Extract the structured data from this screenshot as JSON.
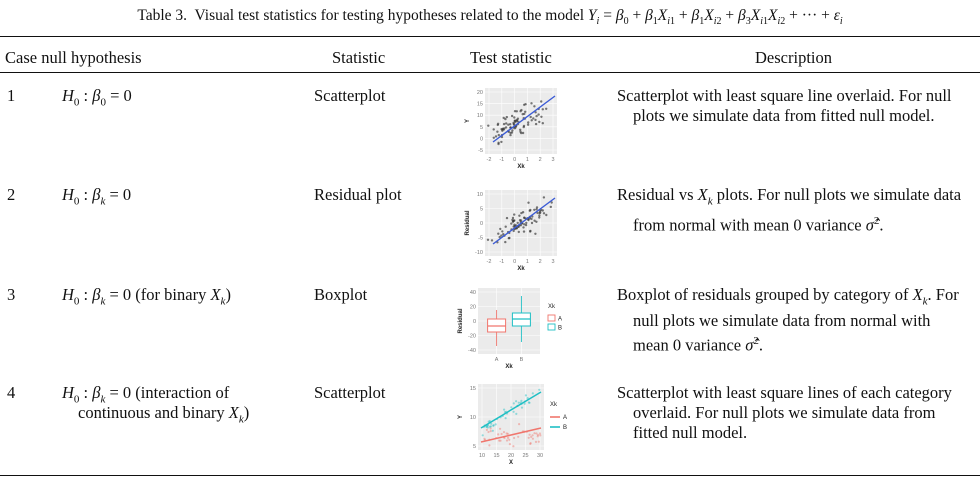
{
  "table": {
    "caption": "Table 3.  Visual test statistics for testing hypotheses related to the model Yi = β0 + β1Xi1 + β1Xi2 + β3Xi1Xi2 + ··· + εi",
    "headers": [
      "Case null hypothesis",
      "Statistic",
      "Test statistic",
      "Description"
    ],
    "rows": [
      {
        "case": "1",
        "hypothesis": [
          "H0 : β0 = 0"
        ],
        "statistic": "Scatterplot",
        "description": [
          "Scatterplot with least square line overlaid. For null",
          "plots we simulate data from fitted null model."
        ],
        "thumb": {
          "ylabel": "Y",
          "xlabel": "Xk",
          "yticks": [
            "20",
            "15",
            "10",
            "5",
            "0",
            "-5"
          ],
          "xticks": [
            "-2",
            "-1",
            "0",
            "1",
            "2",
            "3"
          ]
        }
      },
      {
        "case": "2",
        "hypothesis": [
          "H0 : βk = 0"
        ],
        "statistic": "Residual plot",
        "description": [
          "Residual vs Xk plots. For null plots we simulate data",
          "from normal with mean 0 variance σ̂²."
        ],
        "thumb": {
          "ylabel": "Residual",
          "xlabel": "Xk",
          "yticks": [
            "10",
            "5",
            "0",
            "-5",
            "-10"
          ],
          "xticks": [
            "-2",
            "-1",
            "0",
            "1",
            "2",
            "3"
          ]
        }
      },
      {
        "case": "3",
        "hypothesis": [
          "H0 : βk = 0 (for binary Xk)"
        ],
        "statistic": "Boxplot",
        "description": [
          "Boxplot of residuals grouped by category of Xk. For",
          "null plots we simulate data from normal with",
          "mean 0 variance σ̂²."
        ],
        "thumb": {
          "ylabel": "Residual",
          "xlabel": "Xk",
          "yticks": [
            "40",
            "20",
            "0",
            "-20",
            "-40"
          ],
          "xticks": [
            "A",
            "B"
          ],
          "legend_title": "Xk",
          "legend": [
            "A",
            "B"
          ]
        }
      },
      {
        "case": "4",
        "hypothesis": [
          "H0 : βk = 0 (interaction of",
          "continuous and binary Xk)"
        ],
        "statistic": "Scatterplot",
        "description": [
          "Scatterplot with least square lines of each category",
          "overlaid. For null plots we simulate data from",
          "fitted null model."
        ],
        "thumb": {
          "ylabel": "Y",
          "xlabel": "X",
          "yticks": [
            "15",
            "10",
            "5"
          ],
          "xticks": [
            "10",
            "15",
            "20",
            "25",
            "30"
          ],
          "legend_title": "Xk",
          "legend": [
            "A",
            "B"
          ]
        }
      }
    ]
  },
  "colors": {
    "line_blue": "#3b5bd6",
    "group_a": "#f0766d",
    "group_b": "#1fbfc4",
    "panel_bg": "#ebebeb"
  }
}
